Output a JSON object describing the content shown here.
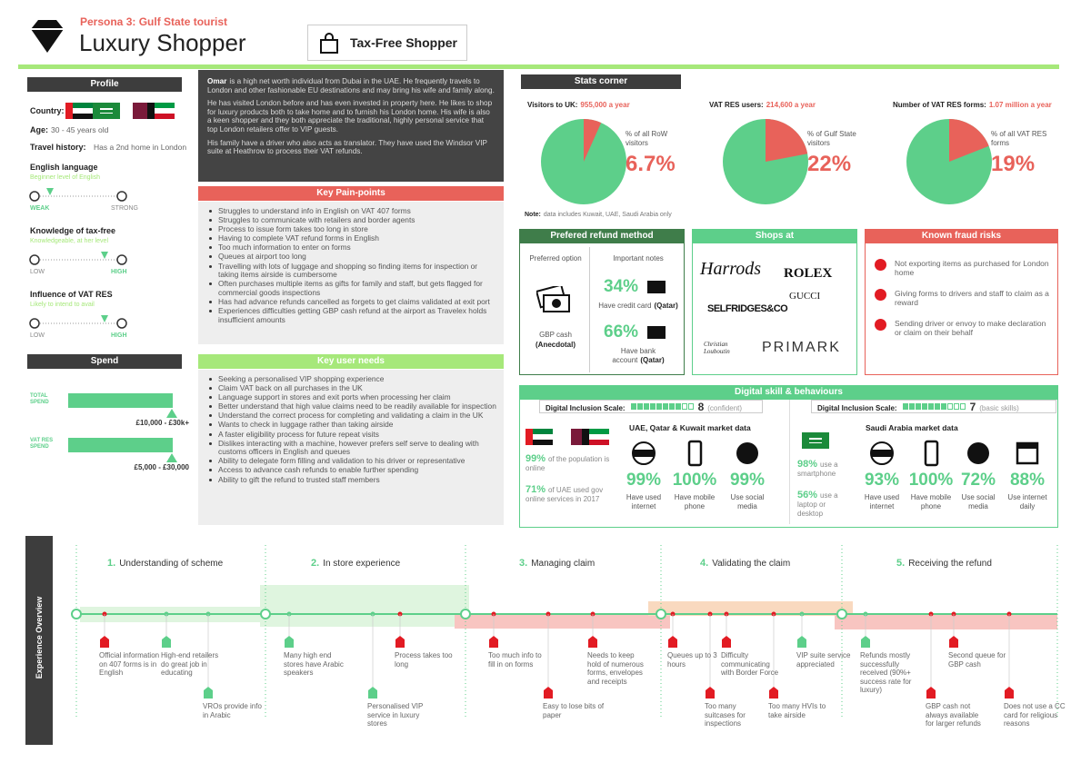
{
  "header": {
    "persona": "Persona 3: Gulf State tourist",
    "title": "Luxury Shopper",
    "badge": "Tax-Free Shopper"
  },
  "profile": {
    "heading": "Profile",
    "country_label": "Country:",
    "age_label": "Age:",
    "age": "30 - 45 years old",
    "travel_label": "Travel history:",
    "travel": "Has a 2nd home in London",
    "scales": [
      {
        "title": "English language",
        "subtitle": "Beginner level of English",
        "low": "WEAK",
        "high": "STRONG"
      },
      {
        "title": "Knowledge of tax-free",
        "subtitle": "Knowledgeable, at her level",
        "low": "LOW",
        "high": "HIGH"
      },
      {
        "title": "Influence of VAT RES",
        "subtitle": "Likely to intend to avail",
        "low": "LOW",
        "high": "HIGH"
      }
    ]
  },
  "spend": {
    "heading": "Spend",
    "rows": [
      {
        "label": "TOTAL SPEND",
        "amount": "£10,000 - £30k+"
      },
      {
        "label": "VAT RES SPEND",
        "amount": "£5,000 - £30,000"
      }
    ]
  },
  "bio": {
    "name": "Omar",
    "paragraphs": [
      "is a high net worth individual from Dubai in the UAE. He frequently travels to London and other fashionable EU destinations and may bring his wife and family along.",
      "He has visited London before and has even invested in property here. He likes to shop for luxury products both to take home and to furnish his London home. His wife is also a keen shopper and they both appreciate the traditional, highly personal service that top London retailers offer to VIP guests.",
      "His family have a driver who also acts as translator. They have used the Windsor VIP suite at Heathrow to process their VAT refunds."
    ]
  },
  "pain": {
    "heading": "Key Pain-points",
    "items": [
      "Struggles to understand info in English on VAT 407 forms",
      "Struggles to communicate with retailers and border agents",
      "Process to issue form takes too long in store",
      "Having to complete VAT refund forms in English",
      "Too much information to enter on forms",
      "Queues at airport too long",
      "Travelling with lots of luggage and shopping so finding items for inspection or taking items airside is cumbersome",
      "Often purchases multiple items as gifts for family and staff, but gets flagged for commercial goods inspections",
      "Has had advance refunds cancelled as forgets to get claims validated at exit port",
      "Experiences difficulties getting GBP cash refund at the airport as Travelex holds insufficient amounts"
    ]
  },
  "needs": {
    "heading": "Key user needs",
    "items": [
      "Seeking a personalised VIP shopping experience",
      "Claim VAT back on all purchases in the UK",
      "Language support in stores and exit ports when processing her claim",
      "Better understand that high value claims need to be readily available for inspection",
      "Understand the correct process for completing and validating a claim in the UK",
      "Wants to check in luggage rather than taking airside",
      "A faster eligibility process for future repeat visits",
      "Dislikes interacting with a machine, however prefers self serve to dealing with customs officers in English and queues",
      "Ability to delegate form filling and validation to his driver or representative",
      "Access to advance cash refunds to enable further spending",
      "Ability to gift the refund to trusted staff members"
    ]
  },
  "stats": {
    "heading": "Stats corner",
    "slice_color": "#e8625a",
    "rest_color": "#5dcf8a",
    "items": [
      {
        "label": "Visitors to UK:",
        "figure": "955,000 a year",
        "caption": "% of all RoW visitors",
        "share": {
          "value": 6.7,
          "label": "6.7%"
        }
      },
      {
        "label": "VAT RES users:",
        "figure": "214,600 a year",
        "caption": "% of Gulf State visitors",
        "share": {
          "value": 22,
          "label": "22%"
        }
      },
      {
        "label": "Number of VAT RES forms:",
        "figure": "1.07 million a year",
        "caption": "% of all VAT RES forms",
        "share": {
          "value": 19,
          "label": "19%"
        }
      }
    ],
    "note_label": "Note:",
    "note": "data includes Kuwait, UAE, Saudi Arabia only"
  },
  "refund": {
    "heading": "Prefered refund method",
    "col1": "Preferred option",
    "col2": "Important notes",
    "option": "GBP cash",
    "option_note": "(Anecdotal)",
    "notes": [
      {
        "figure": "34%",
        "text": "Have credit card",
        "qualifier": "(Qatar)"
      },
      {
        "figure": "66%",
        "text": "Have bank account",
        "qualifier": "(Qatar)"
      }
    ]
  },
  "shops": {
    "heading": "Shops at",
    "brands": [
      "Harrods",
      "ROLEX",
      "GUCCI",
      "SELFRIDGES&CO",
      "Christian Louboutin",
      "PRIMARK"
    ]
  },
  "fraud": {
    "heading": "Known fraud risks",
    "items": [
      "Not exporting items as purchased for London home",
      "Giving forms to drivers and staff to claim as a reward",
      "Sending driver or envoy to make declaration or claim on their behalf"
    ]
  },
  "digital": {
    "heading": "Digital skill & behaviours",
    "groups": [
      {
        "scale_label": "Digital Inclusion Scale:",
        "score": 8,
        "score_note": "(confident)",
        "market": "UAE, Qatar & Kuwait market data",
        "facts": [
          {
            "figure": "99%",
            "text": "of the population is online"
          },
          {
            "figure": "71%",
            "text": "of UAE used gov online services in 2017"
          }
        ],
        "metrics": [
          {
            "figure": "99%",
            "text": "Have used internet"
          },
          {
            "figure": "100%",
            "text": "Have mobile phone"
          },
          {
            "figure": "99%",
            "text": "Use social media"
          }
        ]
      },
      {
        "scale_label": "Digital Inclusion Scale:",
        "score": 7,
        "score_note": "(basic skills)",
        "market": "Saudi Arabia market data",
        "facts": [
          {
            "figure": "98%",
            "text": "use a smartphone"
          },
          {
            "figure": "56%",
            "text": "use a laptop or desktop"
          }
        ],
        "metrics": [
          {
            "figure": "93%",
            "text": "Have used internet"
          },
          {
            "figure": "100%",
            "text": "Have mobile phone"
          },
          {
            "figure": "72%",
            "text": "Use social media"
          },
          {
            "figure": "88%",
            "text": "Use internet daily"
          }
        ]
      }
    ]
  },
  "journey": {
    "heading": "Experience Overview",
    "stages": [
      {
        "number": "1.",
        "title": "Understanding of scheme"
      },
      {
        "number": "2.",
        "title": "In store experience"
      },
      {
        "number": "3.",
        "title": "Managing claim"
      },
      {
        "number": "4.",
        "title": "Validating the claim"
      },
      {
        "number": "5.",
        "title": "Receiving the refund"
      }
    ],
    "notes": [
      {
        "text": "Official information on 407 forms is in English",
        "color": "#e21b23"
      },
      {
        "text": "High-end retailers do great job in educating",
        "color": "#5dcf8a"
      },
      {
        "text": "VROs provide info in Arabic",
        "color": "#5dcf8a"
      },
      {
        "text": "Many high end stores have Arabic speakers",
        "color": "#5dcf8a"
      },
      {
        "text": "Personalised VIP service in luxury stores",
        "color": "#5dcf8a"
      },
      {
        "text": "Process takes too long",
        "color": "#e21b23"
      },
      {
        "text": "Too much info to fill in on forms",
        "color": "#e21b23"
      },
      {
        "text": "Easy to lose bits of paper",
        "color": "#e21b23"
      },
      {
        "text": "Needs to keep hold of numerous forms, envelopes and receipts",
        "color": "#e21b23"
      },
      {
        "text": "Queues up to 3 hours",
        "color": "#e21b23"
      },
      {
        "text": "Too many suitcases for inspections",
        "color": "#e21b23"
      },
      {
        "text": "Difficulty communicating with Border Force",
        "color": "#e21b23"
      },
      {
        "text": "Too many HVIs to take airside",
        "color": "#e21b23"
      },
      {
        "text": "VIP suite service appreciated",
        "color": "#5dcf8a"
      },
      {
        "text": "Refunds mostly successfully received (90%+ success rate for luxury)",
        "color": "#5dcf8a"
      },
      {
        "text": "GBP cash not always available for larger refunds",
        "color": "#e21b23"
      },
      {
        "text": "Second queue for GBP cash",
        "color": "#e21b23"
      },
      {
        "text": "Does not use a CC card for religious reasons",
        "color": "#e21b23"
      }
    ]
  }
}
